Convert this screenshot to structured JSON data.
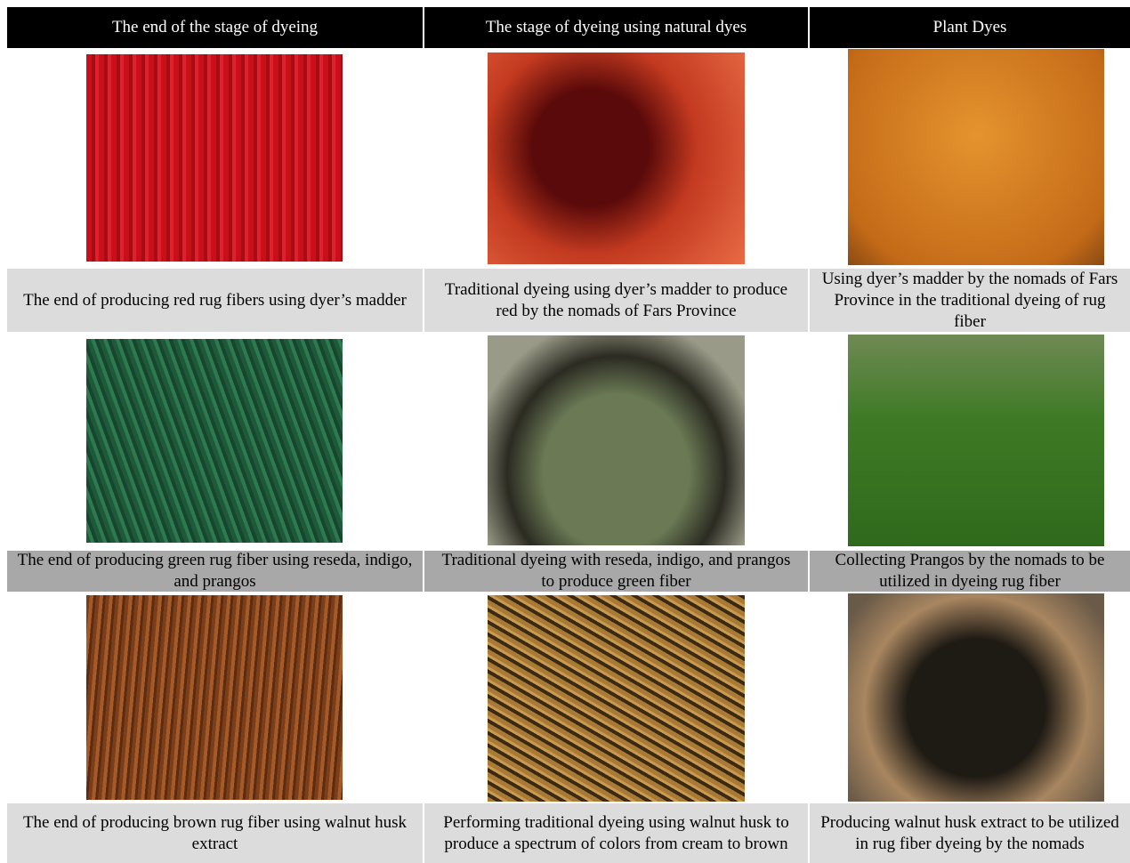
{
  "header": {
    "columns": [
      "The end of the stage of dyeing",
      "The stage of dyeing using natural dyes",
      "Plant Dyes"
    ]
  },
  "rows": [
    {
      "captions": [
        "The end of producing red rug fibers using dyer’s madder",
        "Traditional dyeing using dyer’s madder to produce red by the nomads of Fars Province",
        "Using dyer’s madder by the nomads of Fars Province in the traditional dyeing of rug fiber"
      ]
    },
    {
      "captions": [
        "The end of producing green rug fiber using reseda, indigo, and prangos",
        "Traditional dyeing with reseda, indigo, and prangos to produce green fiber",
        "Collecting Prangos by the nomads to be utilized in dyeing rug fiber"
      ]
    },
    {
      "captions": [
        "The end of producing brown rug fiber using walnut husk extract",
        "Performing traditional dyeing using walnut husk to produce a spectrum of colors from cream to brown",
        "Producing walnut husk extract to be utilized in rug fiber dyeing by the nomads"
      ]
    }
  ]
}
